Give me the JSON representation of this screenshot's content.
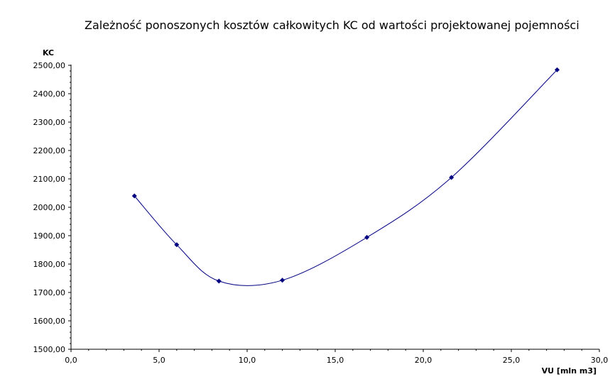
{
  "chart_data": {
    "type": "line",
    "title": "Zależność ponoszonych kosztów całkowitych KC od wartości projektowanej pojemności",
    "xlabel": "VU [mln m3]",
    "ylabel": "KC",
    "xlim": [
      0,
      30
    ],
    "ylim": [
      1500,
      2500
    ],
    "x_ticks": [
      "0,0",
      "5,0",
      "10,0",
      "15,0",
      "20,0",
      "25,0",
      "30,0"
    ],
    "y_ticks": [
      "1500,00",
      "1600,00",
      "1700,00",
      "1800,00",
      "1900,00",
      "2000,00",
      "2100,00",
      "2200,00",
      "2300,00",
      "2400,00",
      "2500,00"
    ],
    "x_tick_values": [
      0,
      5,
      10,
      15,
      20,
      25,
      30
    ],
    "y_tick_values": [
      1500,
      1600,
      1700,
      1800,
      1900,
      2000,
      2100,
      2200,
      2300,
      2400,
      2500
    ],
    "grid": false,
    "series": [
      {
        "x": [
          3.6,
          6.0,
          8.4,
          12.0,
          16.8,
          21.6,
          27.6
        ],
        "y": [
          2040,
          1868,
          1740,
          1743,
          1894,
          2105,
          2484
        ],
        "color": "#000080"
      }
    ]
  }
}
